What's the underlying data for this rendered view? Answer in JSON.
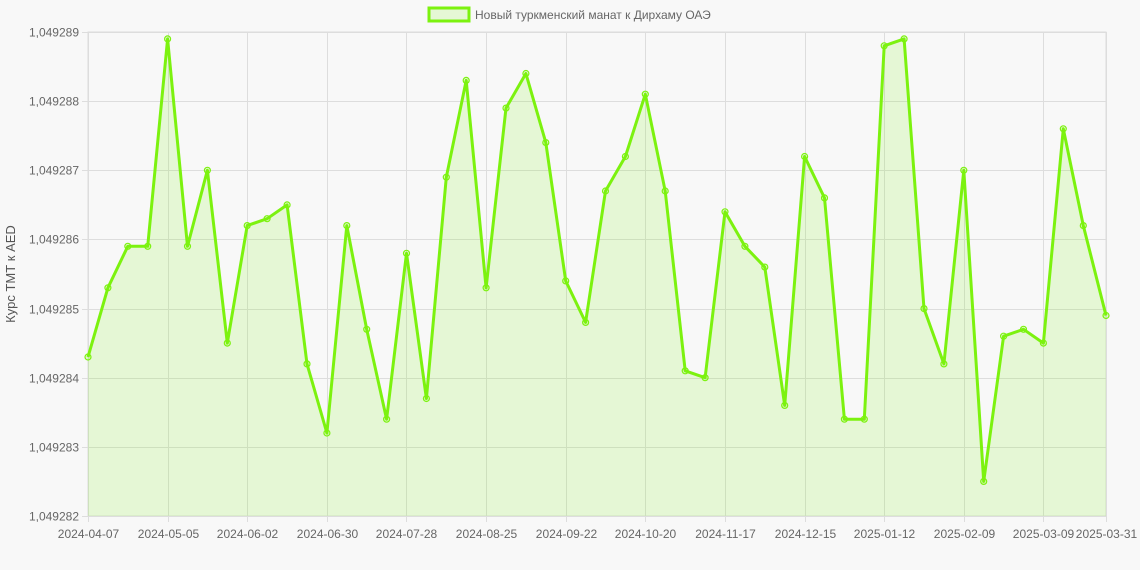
{
  "chart_data": {
    "type": "area",
    "ylabel": "Курс ТМТ к AED",
    "legend_position": "top-center",
    "grid": true,
    "ylim": [
      1.049282,
      1.049289
    ],
    "y_ticks": [
      "1,049282",
      "1,049283",
      "1,049284",
      "1,049285",
      "1,049286",
      "1,049287",
      "1,049288",
      "1,049289"
    ],
    "x_ticks": [
      "2024-04-07",
      "2024-05-05",
      "2024-06-02",
      "2024-06-30",
      "2024-07-28",
      "2024-08-25",
      "2024-09-22",
      "2024-10-20",
      "2024-11-17",
      "2024-12-15",
      "2025-01-12",
      "2025-02-09",
      "2025-03-09",
      "2025-03-31"
    ],
    "x": [
      "2024-04-07",
      "2024-04-14",
      "2024-04-21",
      "2024-04-28",
      "2024-05-05",
      "2024-05-12",
      "2024-05-19",
      "2024-05-26",
      "2024-06-02",
      "2024-06-09",
      "2024-06-16",
      "2024-06-23",
      "2024-06-30",
      "2024-07-07",
      "2024-07-14",
      "2024-07-21",
      "2024-07-28",
      "2024-08-04",
      "2024-08-11",
      "2024-08-18",
      "2024-08-25",
      "2024-09-01",
      "2024-09-08",
      "2024-09-15",
      "2024-09-22",
      "2024-09-29",
      "2024-10-06",
      "2024-10-13",
      "2024-10-20",
      "2024-10-27",
      "2024-11-03",
      "2024-11-10",
      "2024-11-17",
      "2024-11-24",
      "2024-12-01",
      "2024-12-08",
      "2024-12-15",
      "2024-12-22",
      "2024-12-29",
      "2025-01-05",
      "2025-01-12",
      "2025-01-19",
      "2025-01-26",
      "2025-02-02",
      "2025-02-09",
      "2025-02-16",
      "2025-02-23",
      "2025-03-02",
      "2025-03-09",
      "2025-03-16",
      "2025-03-23",
      "2025-03-31"
    ],
    "series": [
      {
        "name": "Новый туркменский манат к Дирхаму ОАЭ",
        "color": "#7cf20f",
        "fill": "rgba(124, 242, 15, 0.15)",
        "values": [
          1.0492843,
          1.0492853,
          1.0492859,
          1.0492859,
          1.0492889,
          1.0492859,
          1.049287,
          1.0492845,
          1.0492862,
          1.0492863,
          1.0492865,
          1.0492842,
          1.0492832,
          1.0492862,
          1.0492847,
          1.0492834,
          1.0492858,
          1.0492837,
          1.0492869,
          1.0492883,
          1.0492853,
          1.0492879,
          1.0492884,
          1.0492874,
          1.0492854,
          1.0492848,
          1.0492867,
          1.0492872,
          1.0492881,
          1.0492867,
          1.0492841,
          1.049284,
          1.0492864,
          1.0492859,
          1.0492856,
          1.0492836,
          1.0492872,
          1.0492866,
          1.0492834,
          1.0492834,
          1.0492888,
          1.0492889,
          1.049285,
          1.0492842,
          1.049287,
          1.0492825,
          1.0492846,
          1.0492847,
          1.0492845,
          1.0492876,
          1.0492862,
          1.0492849
        ]
      }
    ]
  }
}
